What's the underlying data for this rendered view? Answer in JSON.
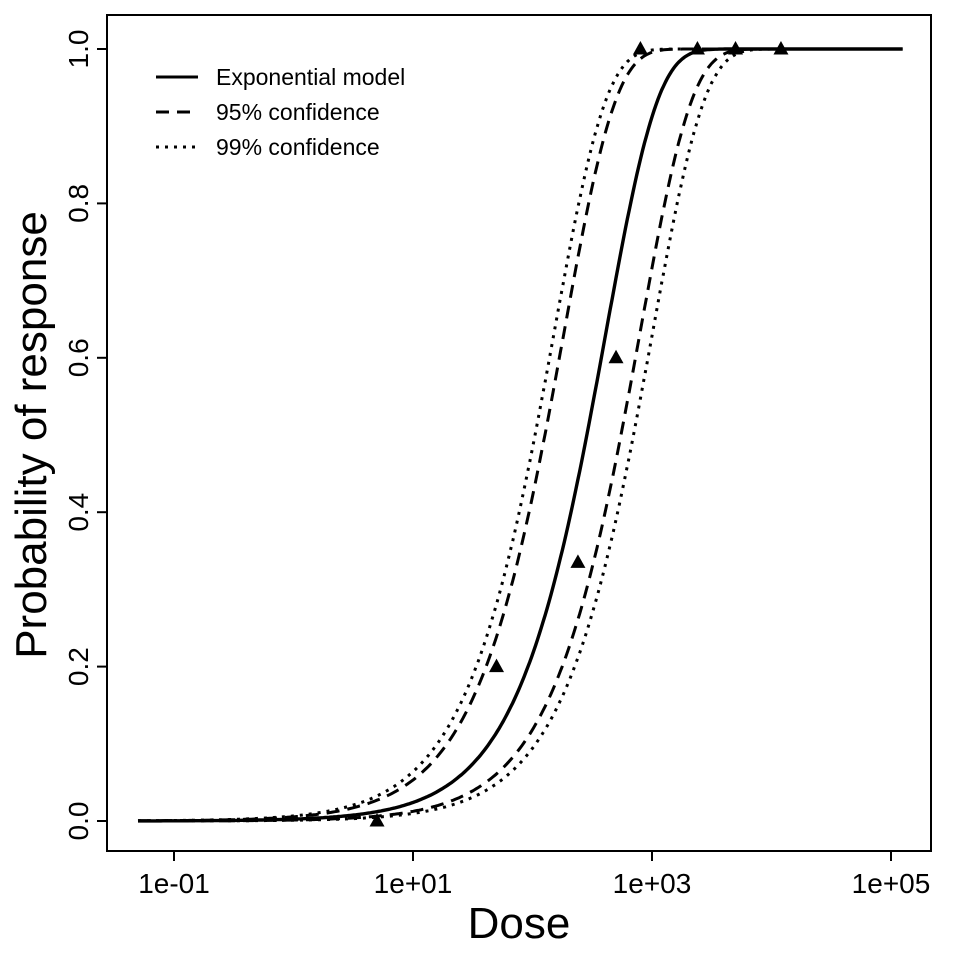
{
  "figure": {
    "background": "#ffffff",
    "foreground": "#000000"
  },
  "chart_data": {
    "type": "line",
    "title": "",
    "xlabel": "Dose",
    "ylabel": "Probability of response",
    "x_scale": "log10",
    "xlim": [
      0.05,
      125000
    ],
    "ylim": [
      0.0,
      1.0
    ],
    "grid": false,
    "x_ticks": [
      {
        "value": 0.1,
        "label": "1e-01"
      },
      {
        "value": 10,
        "label": "1e+01"
      },
      {
        "value": 1000,
        "label": "1e+03"
      },
      {
        "value": 100000,
        "label": "1e+05"
      }
    ],
    "y_ticks": [
      {
        "value": 0.0,
        "label": "0.0"
      },
      {
        "value": 0.2,
        "label": "0.2"
      },
      {
        "value": 0.4,
        "label": "0.4"
      },
      {
        "value": 0.6,
        "label": "0.6"
      },
      {
        "value": 0.8,
        "label": "0.8"
      },
      {
        "value": 1.0,
        "label": "1.0"
      }
    ],
    "model": "p = 1 - exp(-ln(2) * dose / ed50)",
    "series": [
      {
        "name": "99% confidence (lower dose bound)",
        "style": "dotted",
        "ed50": 105
      },
      {
        "name": "99% confidence (upper dose bound)",
        "style": "dotted",
        "ed50": 700
      },
      {
        "name": "95% confidence (lower dose bound)",
        "style": "dashed",
        "ed50": 127
      },
      {
        "name": "95% confidence (upper dose bound)",
        "style": "dashed",
        "ed50": 550
      },
      {
        "name": "Exponential model",
        "style": "solid",
        "ed50": 285
      }
    ],
    "points": {
      "marker": "filled-triangle-up",
      "data": [
        {
          "dose": 5,
          "probability": 0.0
        },
        {
          "dose": 50,
          "probability": 0.2
        },
        {
          "dose": 240,
          "probability": 0.335
        },
        {
          "dose": 500,
          "probability": 0.6
        },
        {
          "dose": 800,
          "probability": 1.0
        },
        {
          "dose": 2400,
          "probability": 1.0
        },
        {
          "dose": 5000,
          "probability": 1.0
        },
        {
          "dose": 12000,
          "probability": 1.0
        }
      ]
    },
    "legend": {
      "position": "top-left",
      "border": false,
      "items": [
        {
          "label": "Exponential model",
          "style": "solid"
        },
        {
          "label": "95% confidence",
          "style": "dashed"
        },
        {
          "label": "99% confidence",
          "style": "dotted"
        }
      ]
    }
  }
}
